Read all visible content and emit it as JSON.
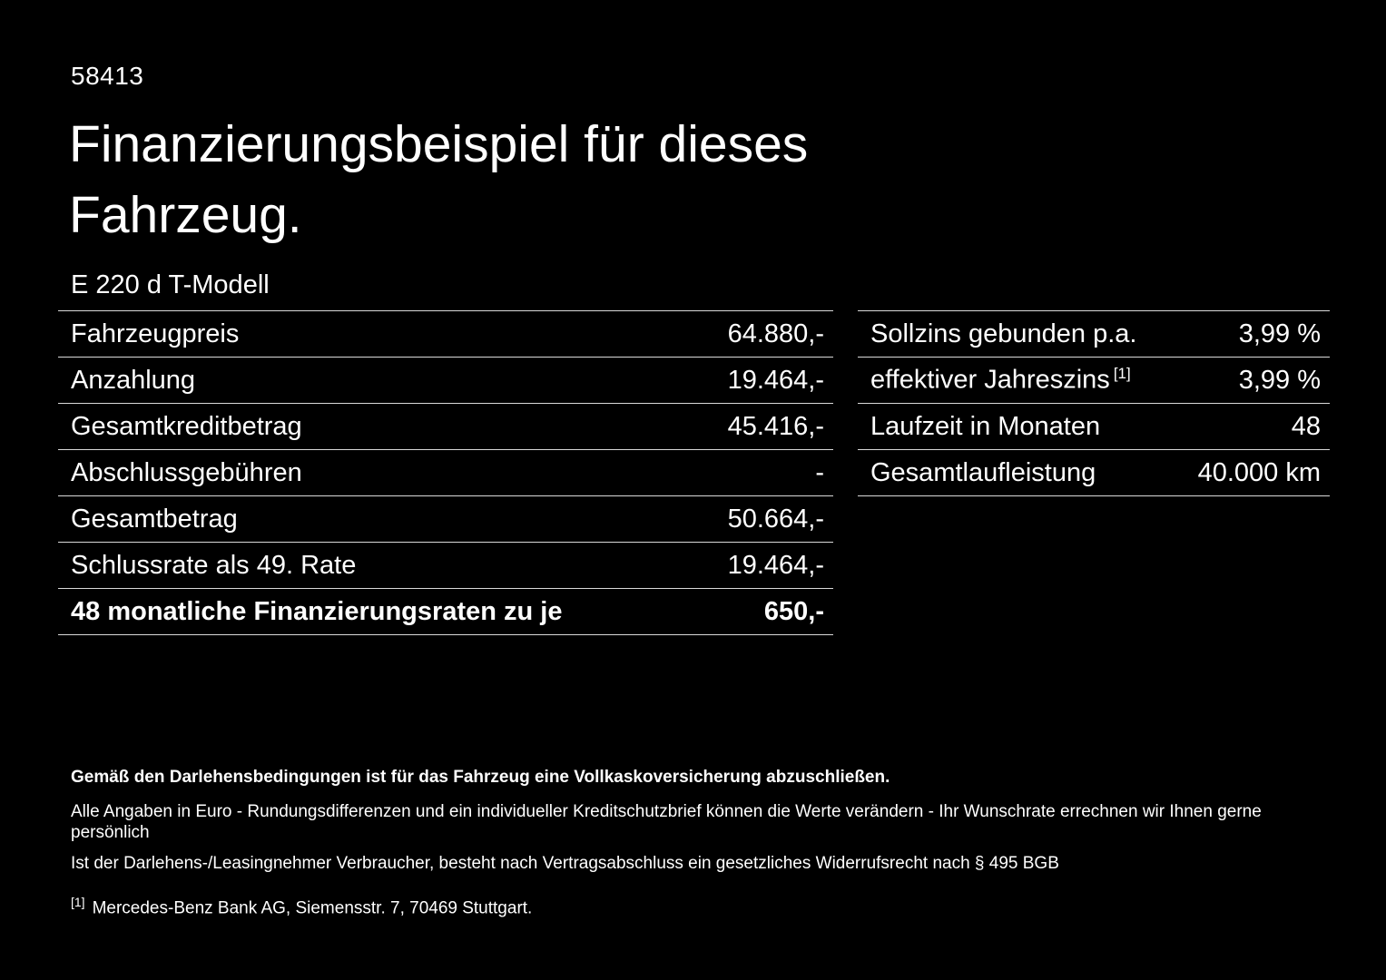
{
  "page": {
    "doc_number": "58413",
    "title_line1": "Finanzierungsbeispiel für dieses",
    "title_line2": "Fahrzeug.",
    "model": "E 220 d T-Modell"
  },
  "left_table": {
    "rows": [
      {
        "label": "Fahrzeugpreis",
        "value": "64.880,-"
      },
      {
        "label": "Anzahlung",
        "value": "19.464,-"
      },
      {
        "label": "Gesamtkreditbetrag",
        "value": "45.416,-"
      },
      {
        "label": "Abschlussgebühren",
        "value": "-"
      },
      {
        "label": "Gesamtbetrag",
        "value": "50.664,-"
      },
      {
        "label": "Schlussrate als 49. Rate",
        "value": "19.464,-"
      },
      {
        "label": "48 monatliche Finanzierungsraten zu je",
        "value": "650,-"
      }
    ]
  },
  "right_table": {
    "rows": [
      {
        "label": "Sollzins gebunden p.a.",
        "sup": "",
        "value": "3,99 %"
      },
      {
        "label": "effektiver Jahreszins",
        "sup": "[1]",
        "value": "3,99 %"
      },
      {
        "label": "Laufzeit in Monaten",
        "sup": "",
        "value": "48"
      },
      {
        "label": "Gesamtlaufleistung",
        "sup": "",
        "value": "40.000 km"
      }
    ]
  },
  "footer": {
    "bold_note": "Gemäß den Darlehensbedingungen ist für das Fahrzeug eine Vollkaskoversicherung abzuschließen.",
    "note1": "Alle Angaben in Euro - Rundungsdifferenzen und ein individueller Kreditschutzbrief können die Werte verändern - Ihr Wunschrate errechnen wir Ihnen gerne persönlich",
    "note2": "Ist der Darlehens-/Leasingnehmer Verbraucher, besteht nach Vertragsabschluss ein gesetzliches Widerrufsrecht nach § 495 BGB",
    "footnote_marker": "[1]",
    "footnote_text": "Mercedes-Benz Bank AG, Siemensstr. 7, 70469 Stuttgart."
  },
  "colors": {
    "background": "#000000",
    "text": "#ffffff",
    "divider": "#d9d9d9"
  }
}
